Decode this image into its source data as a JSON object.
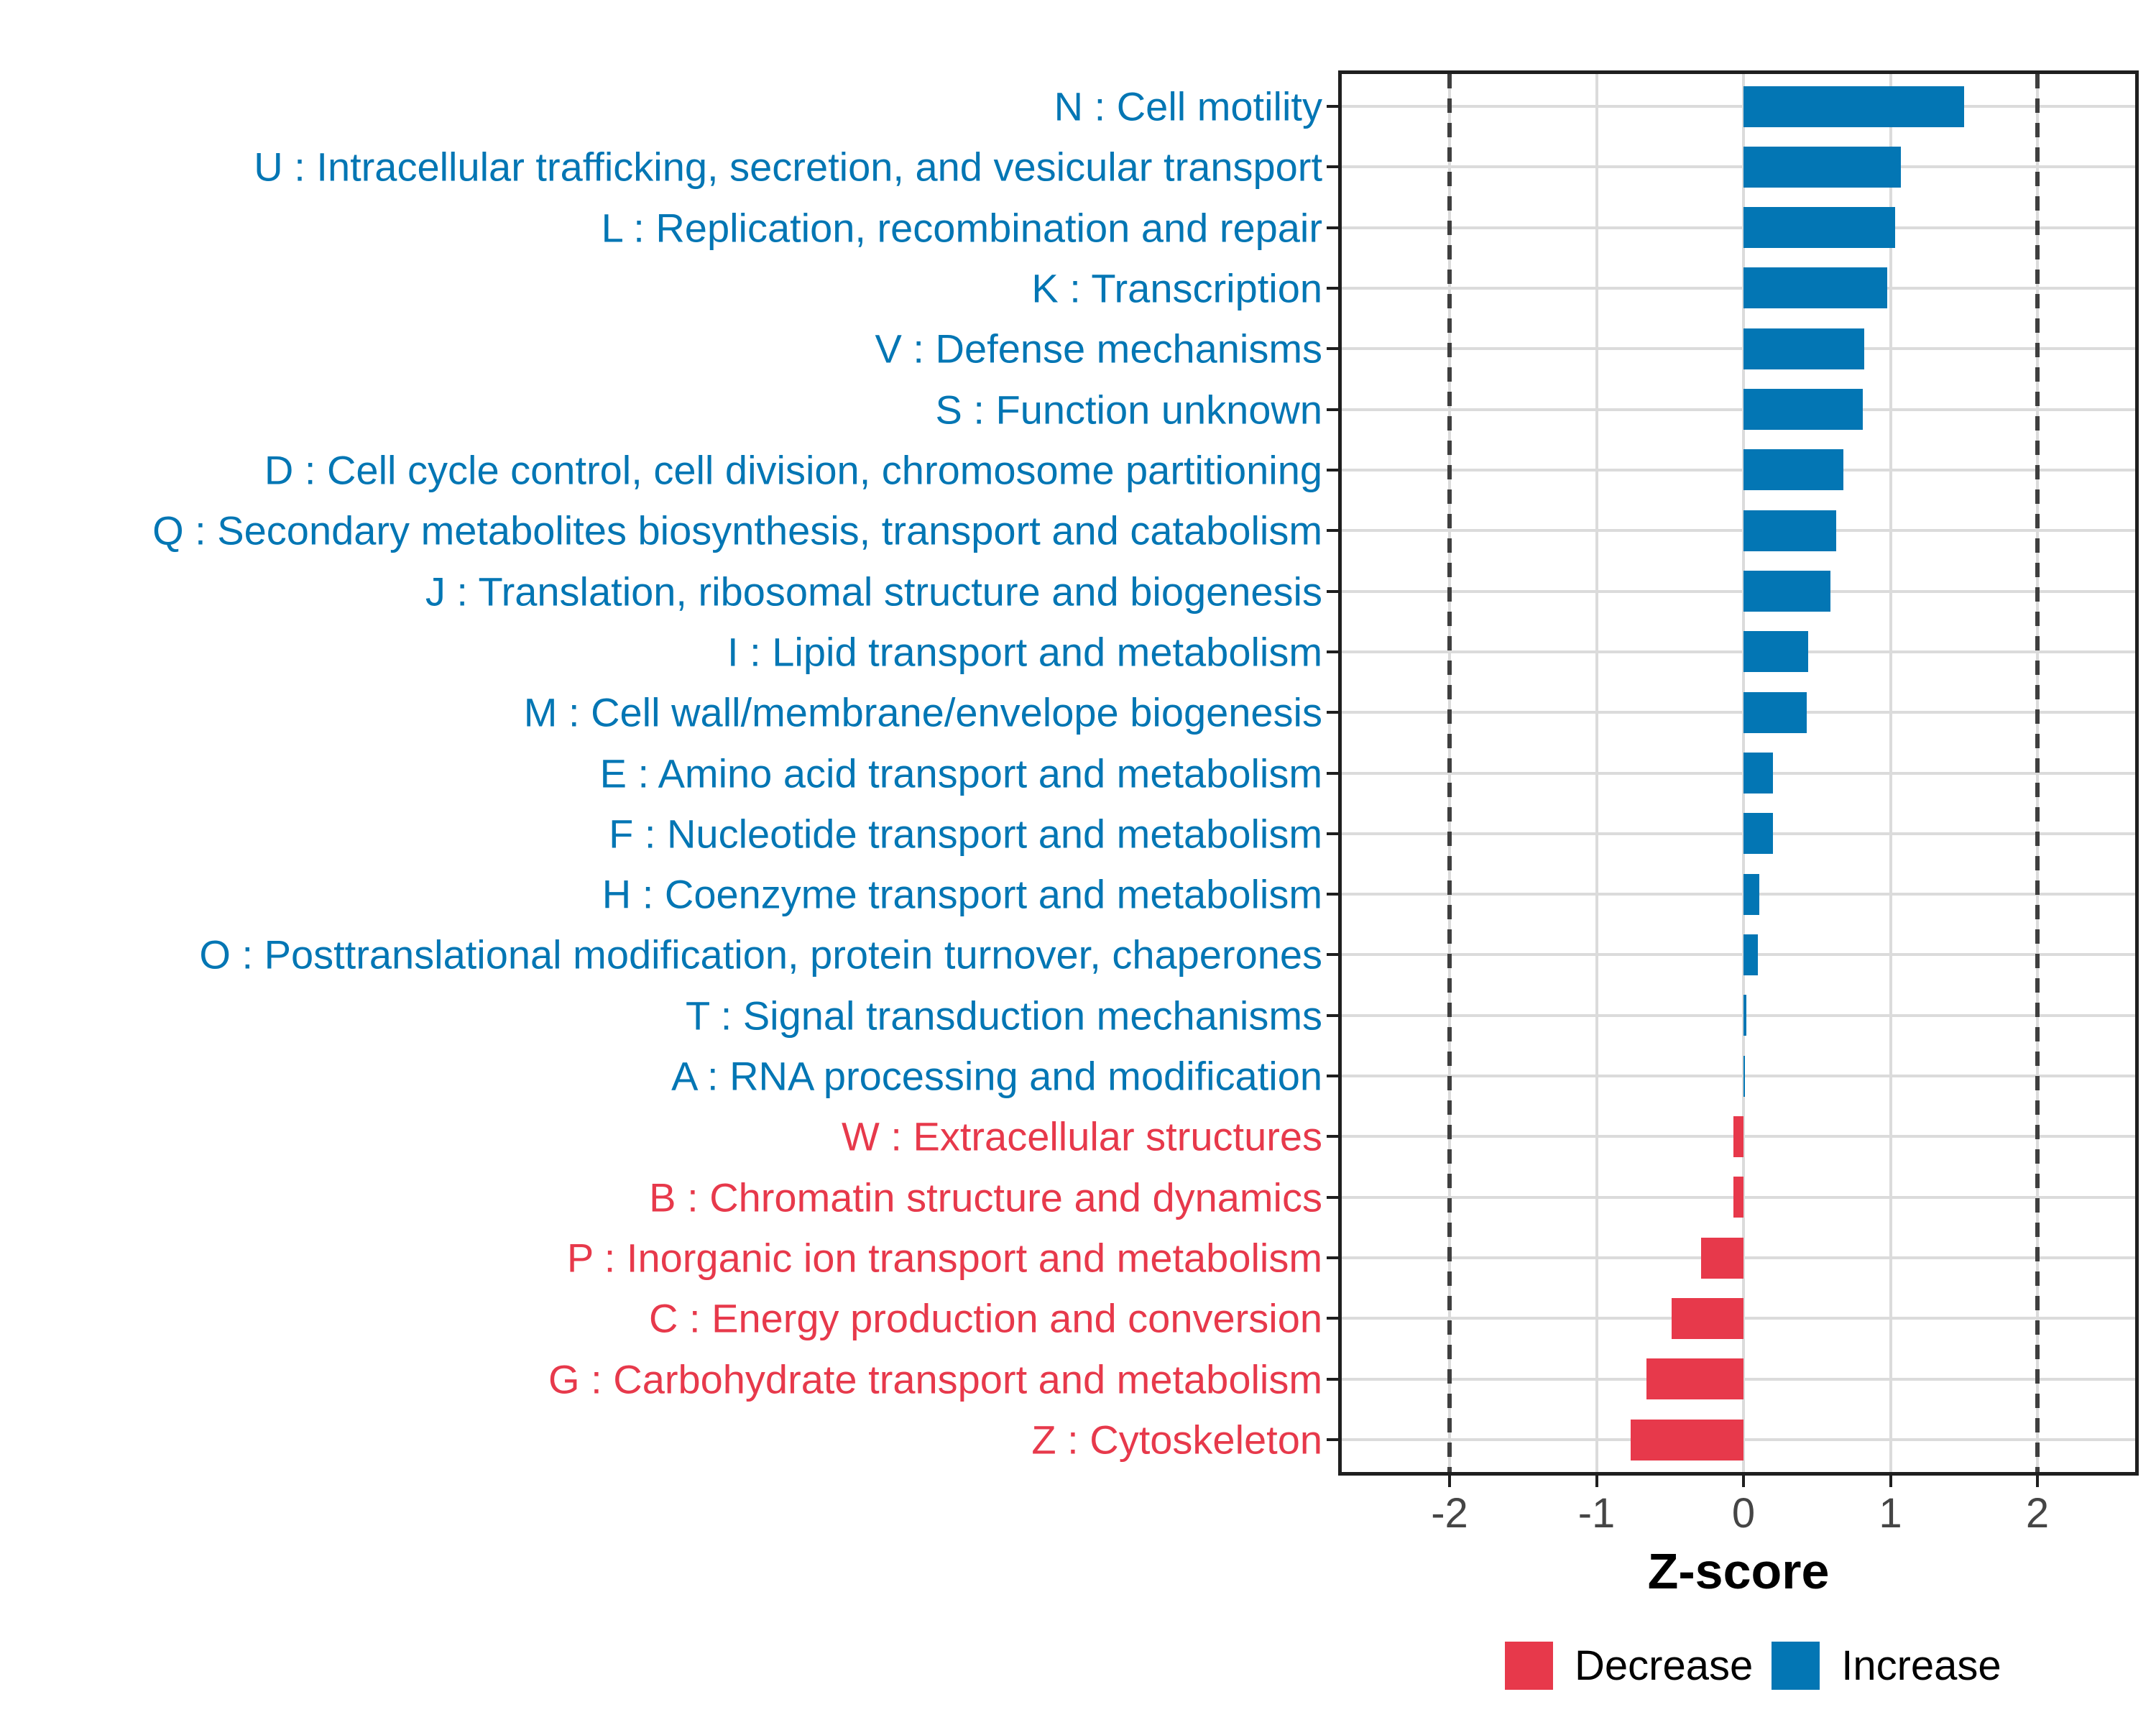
{
  "chart_data": {
    "type": "bar",
    "orientation": "horizontal",
    "title": "",
    "xlabel": "Z-score",
    "ylabel": "",
    "x_ticks": [
      -2,
      -1,
      0,
      1,
      2
    ],
    "x_tick_labels": [
      "-2",
      "-1",
      "0",
      "1",
      "2"
    ],
    "xlim": [
      -2.76,
      2.69
    ],
    "grid": "major-only",
    "dashed_reference_lines": [
      -2,
      2
    ],
    "bars": [
      {
        "label": "N : Cell motility",
        "value": 1.5,
        "group": "Increase"
      },
      {
        "label": "U : Intracellular trafficking, secretion, and vesicular transport",
        "value": 1.07,
        "group": "Increase"
      },
      {
        "label": "L : Replication, recombination and repair",
        "value": 1.03,
        "group": "Increase"
      },
      {
        "label": "K : Transcription",
        "value": 0.98,
        "group": "Increase"
      },
      {
        "label": "V : Defense mechanisms",
        "value": 0.82,
        "group": "Increase"
      },
      {
        "label": "S : Function unknown",
        "value": 0.81,
        "group": "Increase"
      },
      {
        "label": "D : Cell cycle control, cell division, chromosome partitioning",
        "value": 0.68,
        "group": "Increase"
      },
      {
        "label": "Q : Secondary metabolites biosynthesis, transport and catabolism",
        "value": 0.63,
        "group": "Increase"
      },
      {
        "label": "J : Translation, ribosomal structure and biogenesis",
        "value": 0.59,
        "group": "Increase"
      },
      {
        "label": "I : Lipid transport and metabolism",
        "value": 0.44,
        "group": "Increase"
      },
      {
        "label": "M : Cell wall/membrane/envelope biogenesis",
        "value": 0.43,
        "group": "Increase"
      },
      {
        "label": "E : Amino acid transport and metabolism",
        "value": 0.2,
        "group": "Increase"
      },
      {
        "label": "F : Nucleotide transport and metabolism",
        "value": 0.2,
        "group": "Increase"
      },
      {
        "label": "H : Coenzyme transport and metabolism",
        "value": 0.11,
        "group": "Increase"
      },
      {
        "label": "O : Posttranslational modification, protein turnover, chaperones",
        "value": 0.1,
        "group": "Increase"
      },
      {
        "label": "T : Signal transduction mechanisms",
        "value": 0.02,
        "group": "Increase"
      },
      {
        "label": "A : RNA processing and modification",
        "value": 0.01,
        "group": "Increase"
      },
      {
        "label": "W : Extracellular structures",
        "value": -0.07,
        "group": "Decrease"
      },
      {
        "label": "B : Chromatin structure and dynamics",
        "value": -0.07,
        "group": "Decrease"
      },
      {
        "label": "P : Inorganic ion transport and metabolism",
        "value": -0.29,
        "group": "Decrease"
      },
      {
        "label": "C : Energy production and conversion",
        "value": -0.49,
        "group": "Decrease"
      },
      {
        "label": "G : Carbohydrate transport and metabolism",
        "value": -0.66,
        "group": "Decrease"
      },
      {
        "label": "Z : Cytoskeleton",
        "value": -0.77,
        "group": "Decrease"
      }
    ],
    "group_colors": {
      "Increase": "#0376B4",
      "Decrease": "#E7394B"
    },
    "legend": {
      "position": "bottom-right",
      "items": [
        {
          "label": "Decrease",
          "swatch_color": "#E7394B"
        },
        {
          "label": "Increase",
          "swatch_color": "#0376B4"
        }
      ]
    }
  },
  "styles": {
    "grid_color": "#dbdbdb",
    "axis_text_color": "#454545",
    "panel_border_color": "#1f1f1f",
    "dash_line_color": "#3f3f3f",
    "background": "#ffffff"
  }
}
